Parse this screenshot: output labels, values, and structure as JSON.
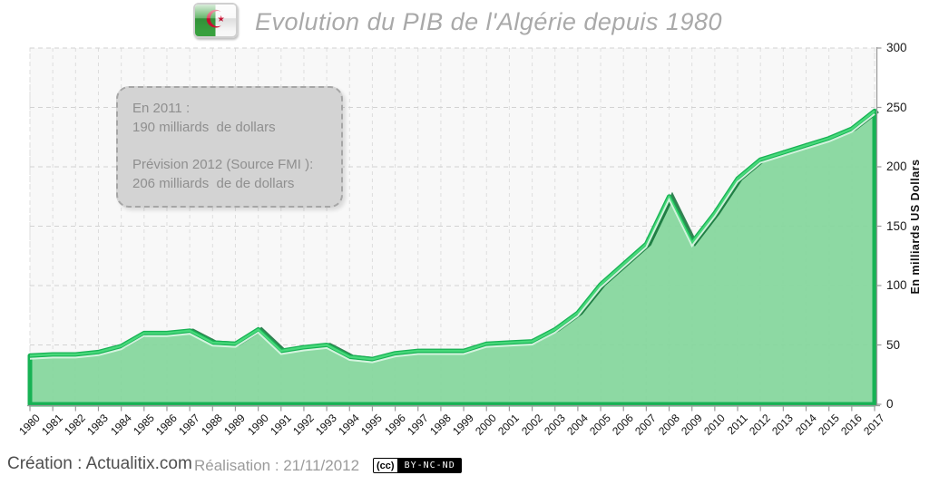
{
  "header": {
    "title": "Evolution du PIB de l'Algérie depuis 1980",
    "flag_icon": "algeria-flag",
    "flag_emblem": "☪"
  },
  "annotation": {
    "line1": "En 2011 :",
    "line2": "190 milliards  de dollars",
    "line3": "Prévision 2012 (Source FMI ):",
    "line4": "206 milliards  de de dollars"
  },
  "footer": {
    "creation": "Création : Actualitix.com",
    "realisation": "Réalisation : 21/11/2012",
    "license_icon": "creative-commons-icon",
    "license_cc": "(cc)",
    "license_terms": "BY-NC-ND"
  },
  "chart_data": {
    "type": "area",
    "title": "Evolution du PIB de l'Algérie depuis 1980",
    "xlabel": "",
    "ylabel": "En milliards US Dollars",
    "ylim": [
      0,
      300
    ],
    "yticks": [
      0,
      50,
      100,
      150,
      200,
      250,
      300
    ],
    "grid": true,
    "legend": "none",
    "years": [
      1980,
      1981,
      1982,
      1983,
      1984,
      1985,
      1986,
      1987,
      1988,
      1989,
      1990,
      1991,
      1992,
      1993,
      1994,
      1995,
      1996,
      1997,
      1998,
      1999,
      2000,
      2001,
      2002,
      2003,
      2004,
      2005,
      2006,
      2007,
      2008,
      2009,
      2010,
      2011,
      2012,
      2013,
      2014,
      2015,
      2016,
      2017
    ],
    "values": [
      41,
      42,
      42,
      44,
      49,
      60,
      60,
      62,
      52,
      51,
      63,
      45,
      48,
      50,
      40,
      38,
      43,
      45,
      45,
      45,
      51,
      52,
      53,
      63,
      77,
      101,
      118,
      135,
      175,
      136,
      161,
      190,
      206,
      212,
      218,
      224,
      232,
      247
    ],
    "annotated_points": [
      {
        "year": 2011,
        "value": 190
      },
      {
        "year": 2012,
        "value": 206,
        "note": "Prévision (Source FMI)"
      }
    ],
    "colors": {
      "area_fill": "#84d69c",
      "line": "#17b254",
      "line_bright": "#47d87a",
      "line_highlight": "#d9f6e3",
      "line_shadow": "#0e6f35",
      "plot_bg": "#f8f8f8",
      "grid": "#dedede",
      "axis": "#9a9a9a"
    }
  }
}
